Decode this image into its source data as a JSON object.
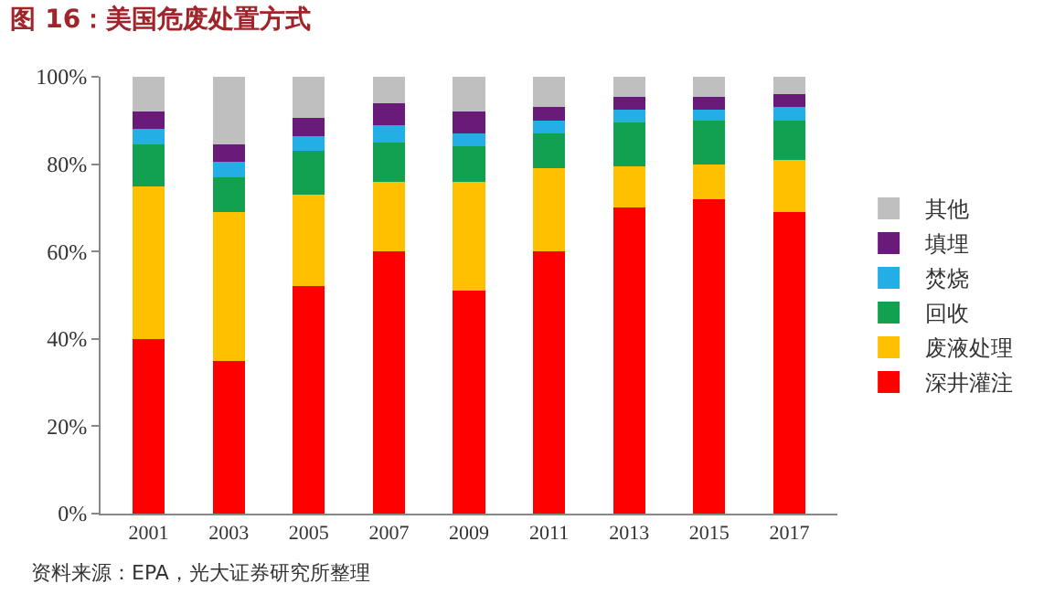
{
  "chart_data": {
    "type": "bar",
    "title": "图 16：美国危废处置方式",
    "stacked": true,
    "categories": [
      "2001",
      "2003",
      "2005",
      "2007",
      "2009",
      "2011",
      "2013",
      "2015",
      "2017"
    ],
    "series": [
      {
        "name": "深井灌注",
        "color": "#ff0000",
        "values": [
          40,
          35,
          52,
          60,
          51,
          60,
          70,
          72,
          69
        ]
      },
      {
        "name": "废液处理",
        "color": "#ffc000",
        "values": [
          35,
          34,
          21,
          16,
          25,
          19,
          9.5,
          8,
          12
        ]
      },
      {
        "name": "回收",
        "color": "#12a150",
        "values": [
          9.5,
          8,
          10,
          9,
          8,
          8,
          10,
          10,
          9
        ]
      },
      {
        "name": "焚烧",
        "color": "#23aee6",
        "values": [
          3.5,
          3.5,
          3.5,
          4,
          3,
          3,
          3,
          2.5,
          3
        ]
      },
      {
        "name": "填埋",
        "color": "#6a1b7a",
        "values": [
          4,
          4,
          4,
          5,
          5,
          3,
          3,
          3,
          3
        ]
      },
      {
        "name": "其他",
        "color": "#bfbfbf",
        "values": [
          8,
          15.5,
          9.5,
          6,
          8,
          7,
          4.5,
          4.5,
          4
        ]
      }
    ],
    "ylim": [
      0,
      100
    ],
    "yticks": [
      {
        "value": 0,
        "label": "0%"
      },
      {
        "value": 20,
        "label": "20%"
      },
      {
        "value": 40,
        "label": "40%"
      },
      {
        "value": 60,
        "label": "60%"
      },
      {
        "value": 80,
        "label": "80%"
      },
      {
        "value": 100,
        "label": "100%"
      }
    ],
    "grid": false,
    "legend": "right",
    "annotations": [
      "资料来源：EPA，光大证券研究所整理"
    ]
  }
}
